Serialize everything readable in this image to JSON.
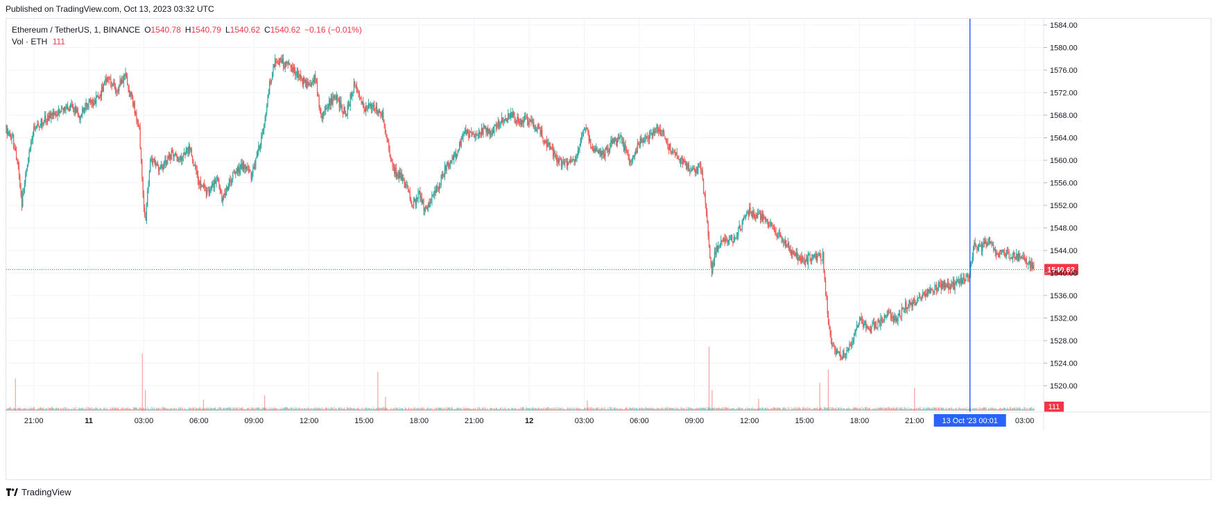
{
  "header": {
    "published": "Published on TradingView.com, Oct 13, 2023 03:32 UTC"
  },
  "legend": {
    "symbol": "Ethereum / TetherUS, 1, BINANCE",
    "open_label": "O",
    "open": "1540.78",
    "high_label": "H",
    "high": "1540.79",
    "low_label": "L",
    "low": "1540.62",
    "close_label": "C",
    "close": "1540.62",
    "change": "−0.16 (−0.01%)",
    "volume_label": "Vol · ETH",
    "volume": "111"
  },
  "footer": {
    "brand": "TradingView"
  },
  "colors": {
    "up": "#26a69a",
    "down": "#ef5350",
    "grid": "#f0f3fa",
    "price_label": "#f23645",
    "crosshair": "#2962ff"
  },
  "chart_data": {
    "type": "candlestick",
    "title": "Ethereum / TetherUS, 1, BINANCE",
    "y_axis": {
      "ticks": [
        1520,
        1524,
        1528,
        1532,
        1536,
        1540,
        1544,
        1548,
        1552,
        1556,
        1560,
        1564,
        1568,
        1572,
        1576,
        1580,
        1584
      ],
      "tick_labels": [
        "1520.00",
        "1524.00",
        "1528.00",
        "1532.00",
        "1536.00",
        "1540.00",
        "1544.00",
        "1548.00",
        "1552.00",
        "1556.00",
        "1560.00",
        "1564.00",
        "1568.00",
        "1572.00",
        "1576.00",
        "1580.00",
        "1584.00"
      ],
      "range": [
        1517.5,
        1586
      ]
    },
    "x_axis": {
      "range": [
        "2023-10-10 19:30",
        "2023-10-13 04:02"
      ],
      "tick_labels": [
        {
          "t": "2023-10-10 21:00",
          "label": "21:00"
        },
        {
          "t": "2023-10-11 00:00",
          "label": "11",
          "bold": true
        },
        {
          "t": "2023-10-11 03:00",
          "label": "03:00"
        },
        {
          "t": "2023-10-11 06:00",
          "label": "06:00"
        },
        {
          "t": "2023-10-11 09:00",
          "label": "09:00"
        },
        {
          "t": "2023-10-11 12:00",
          "label": "12:00"
        },
        {
          "t": "2023-10-11 15:00",
          "label": "15:00"
        },
        {
          "t": "2023-10-11 18:00",
          "label": "18:00"
        },
        {
          "t": "2023-10-11 21:00",
          "label": "21:00"
        },
        {
          "t": "2023-10-12 00:00",
          "label": "12",
          "bold": true
        },
        {
          "t": "2023-10-12 03:00",
          "label": "03:00"
        },
        {
          "t": "2023-10-12 06:00",
          "label": "06:00"
        },
        {
          "t": "2023-10-12 09:00",
          "label": "09:00"
        },
        {
          "t": "2023-10-12 12:00",
          "label": "12:00"
        },
        {
          "t": "2023-10-12 15:00",
          "label": "15:00"
        },
        {
          "t": "2023-10-12 18:00",
          "label": "18:00"
        },
        {
          "t": "2023-10-12 21:00",
          "label": "21:00"
        },
        {
          "t": "2023-10-13 03:00",
          "label": "03:00"
        }
      ]
    },
    "price_path": [
      [
        "2023-10-10 19:30",
        1565.5
      ],
      [
        "2023-10-10 19:50",
        1564.0
      ],
      [
        "2023-10-10 20:10",
        1559.0
      ],
      [
        "2023-10-10 20:20",
        1552.0
      ],
      [
        "2023-10-10 20:40",
        1560.0
      ],
      [
        "2023-10-10 21:00",
        1566.0
      ],
      [
        "2023-10-10 21:30",
        1567.0
      ],
      [
        "2023-10-10 22:00",
        1568.0
      ],
      [
        "2023-10-10 22:30",
        1568.5
      ],
      [
        "2023-10-10 23:00",
        1569.5
      ],
      [
        "2023-10-10 23:30",
        1568.0
      ],
      [
        "2023-10-11 00:00",
        1570.0
      ],
      [
        "2023-10-11 00:30",
        1571.0
      ],
      [
        "2023-10-11 01:00",
        1574.5
      ],
      [
        "2023-10-11 01:30",
        1572.5
      ],
      [
        "2023-10-11 02:00",
        1575.0
      ],
      [
        "2023-10-11 02:30",
        1569.0
      ],
      [
        "2023-10-11 02:45",
        1566.0
      ],
      [
        "2023-10-11 02:55",
        1555.0
      ],
      [
        "2023-10-11 03:05",
        1549.0
      ],
      [
        "2023-10-11 03:20",
        1560.0
      ],
      [
        "2023-10-11 04:00",
        1558.5
      ],
      [
        "2023-10-11 04:30",
        1561.0
      ],
      [
        "2023-10-11 05:00",
        1560.0
      ],
      [
        "2023-10-11 05:30",
        1562.0
      ],
      [
        "2023-10-11 06:00",
        1556.0
      ],
      [
        "2023-10-11 06:30",
        1554.0
      ],
      [
        "2023-10-11 07:00",
        1557.0
      ],
      [
        "2023-10-11 07:15",
        1553.0
      ],
      [
        "2023-10-11 07:30",
        1555.0
      ],
      [
        "2023-10-11 08:00",
        1558.0
      ],
      [
        "2023-10-11 08:30",
        1559.0
      ],
      [
        "2023-10-11 08:50",
        1557.0
      ],
      [
        "2023-10-11 09:30",
        1565.0
      ],
      [
        "2023-10-11 09:50",
        1573.0
      ],
      [
        "2023-10-11 10:10",
        1578.0
      ],
      [
        "2023-10-11 10:40",
        1577.0
      ],
      [
        "2023-10-11 11:10",
        1576.0
      ],
      [
        "2023-10-11 11:40",
        1574.0
      ],
      [
        "2023-10-11 12:00",
        1573.0
      ],
      [
        "2023-10-11 12:20",
        1575.0
      ],
      [
        "2023-10-11 12:40",
        1567.0
      ],
      [
        "2023-10-11 13:00",
        1570.0
      ],
      [
        "2023-10-11 13:30",
        1571.0
      ],
      [
        "2023-10-11 14:00",
        1568.0
      ],
      [
        "2023-10-11 14:30",
        1574.0
      ],
      [
        "2023-10-11 15:00",
        1569.0
      ],
      [
        "2023-10-11 15:30",
        1570.0
      ],
      [
        "2023-10-11 16:00",
        1568.0
      ],
      [
        "2023-10-11 16:20",
        1562.0
      ],
      [
        "2023-10-11 16:40",
        1558.0
      ],
      [
        "2023-10-11 17:00",
        1557.0
      ],
      [
        "2023-10-11 17:20",
        1555.0
      ],
      [
        "2023-10-11 17:40",
        1552.0
      ],
      [
        "2023-10-11 18:00",
        1554.0
      ],
      [
        "2023-10-11 18:20",
        1551.0
      ],
      [
        "2023-10-11 18:40",
        1553.0
      ],
      [
        "2023-10-11 19:00",
        1555.0
      ],
      [
        "2023-10-11 19:30",
        1559.0
      ],
      [
        "2023-10-11 20:00",
        1561.0
      ],
      [
        "2023-10-11 20:30",
        1565.0
      ],
      [
        "2023-10-11 21:00",
        1564.0
      ],
      [
        "2023-10-11 21:30",
        1565.5
      ],
      [
        "2023-10-11 22:00",
        1565.0
      ],
      [
        "2023-10-11 22:30",
        1567.0
      ],
      [
        "2023-10-11 23:00",
        1568.0
      ],
      [
        "2023-10-11 23:30",
        1567.0
      ],
      [
        "2023-10-12 00:00",
        1567.0
      ],
      [
        "2023-10-12 00:30",
        1565.5
      ],
      [
        "2023-10-12 01:00",
        1563.0
      ],
      [
        "2023-10-12 01:30",
        1560.0
      ],
      [
        "2023-10-12 02:00",
        1559.0
      ],
      [
        "2023-10-12 02:30",
        1560.0
      ],
      [
        "2023-10-12 03:00",
        1566.0
      ],
      [
        "2023-10-12 03:30",
        1562.0
      ],
      [
        "2023-10-12 04:00",
        1561.0
      ],
      [
        "2023-10-12 04:30",
        1563.0
      ],
      [
        "2023-10-12 05:00",
        1563.5
      ],
      [
        "2023-10-12 05:30",
        1560.0
      ],
      [
        "2023-10-12 06:00",
        1563.0
      ],
      [
        "2023-10-12 06:30",
        1564.0
      ],
      [
        "2023-10-12 07:00",
        1566.0
      ],
      [
        "2023-10-12 07:30",
        1563.0
      ],
      [
        "2023-10-12 08:00",
        1561.0
      ],
      [
        "2023-10-12 08:30",
        1559.0
      ],
      [
        "2023-10-12 09:00",
        1558.0
      ],
      [
        "2023-10-12 09:20",
        1559.0
      ],
      [
        "2023-10-12 09:40",
        1551.0
      ],
      [
        "2023-10-12 09:55",
        1540.0
      ],
      [
        "2023-10-12 10:10",
        1544.0
      ],
      [
        "2023-10-12 10:40",
        1546.0
      ],
      [
        "2023-10-12 11:10",
        1546.0
      ],
      [
        "2023-10-12 11:40",
        1549.0
      ],
      [
        "2023-10-12 12:00",
        1551.0
      ],
      [
        "2023-10-12 12:30",
        1550.0
      ],
      [
        "2023-10-12 13:00",
        1549.0
      ],
      [
        "2023-10-12 13:30",
        1547.0
      ],
      [
        "2023-10-12 14:00",
        1545.0
      ],
      [
        "2023-10-12 14:30",
        1543.0
      ],
      [
        "2023-10-12 15:00",
        1542.0
      ],
      [
        "2023-10-12 15:30",
        1543.0
      ],
      [
        "2023-10-12 16:00",
        1543.0
      ],
      [
        "2023-10-12 16:15",
        1533.0
      ],
      [
        "2023-10-12 16:30",
        1527.0
      ],
      [
        "2023-10-12 17:00",
        1525.0
      ],
      [
        "2023-10-12 17:30",
        1527.0
      ],
      [
        "2023-10-12 18:00",
        1532.0
      ],
      [
        "2023-10-12 18:30",
        1530.0
      ],
      [
        "2023-10-12 19:00",
        1531.0
      ],
      [
        "2023-10-12 19:30",
        1532.5
      ],
      [
        "2023-10-12 20:00",
        1532.0
      ],
      [
        "2023-10-12 20:30",
        1534.0
      ],
      [
        "2023-10-12 21:00",
        1535.0
      ],
      [
        "2023-10-12 21:30",
        1536.0
      ],
      [
        "2023-10-12 22:00",
        1537.0
      ],
      [
        "2023-10-12 22:30",
        1538.0
      ],
      [
        "2023-10-12 23:00",
        1537.5
      ],
      [
        "2023-10-12 23:30",
        1538.5
      ],
      [
        "2023-10-13 00:00",
        1540.0
      ],
      [
        "2023-10-13 00:15",
        1545.0
      ],
      [
        "2023-10-13 00:40",
        1544.5
      ],
      [
        "2023-10-13 01:00",
        1546.0
      ],
      [
        "2023-10-13 01:30",
        1543.5
      ],
      [
        "2023-10-13 02:00",
        1543.5
      ],
      [
        "2023-10-13 02:30",
        1543.0
      ],
      [
        "2023-10-13 03:00",
        1542.5
      ],
      [
        "2023-10-13 03:32",
        1540.62
      ]
    ],
    "last_price": {
      "value": 1540.62,
      "label": "1540.62"
    },
    "volume_last": {
      "value": 111,
      "label": "111"
    },
    "volume_spikes": [
      [
        "2023-10-10 20:00",
        700
      ],
      [
        "2023-10-11 02:55",
        1250
      ],
      [
        "2023-10-11 03:05",
        450
      ],
      [
        "2023-10-11 09:35",
        330
      ],
      [
        "2023-10-11 15:45",
        850
      ],
      [
        "2023-10-11 16:10",
        300
      ],
      [
        "2023-10-12 09:48",
        1400
      ],
      [
        "2023-10-12 09:58",
        450
      ],
      [
        "2023-10-12 15:50",
        610
      ],
      [
        "2023-10-12 16:18",
        900
      ],
      [
        "2023-10-12 21:00",
        500
      ],
      [
        "2023-10-12 12:30",
        260
      ],
      [
        "2023-10-11 06:15",
        240
      ],
      [
        "2023-10-12 03:10",
        220
      ]
    ],
    "crosshair": {
      "t": "2023-10-13 00:01",
      "label": "13 Oct '23   00:01"
    }
  }
}
